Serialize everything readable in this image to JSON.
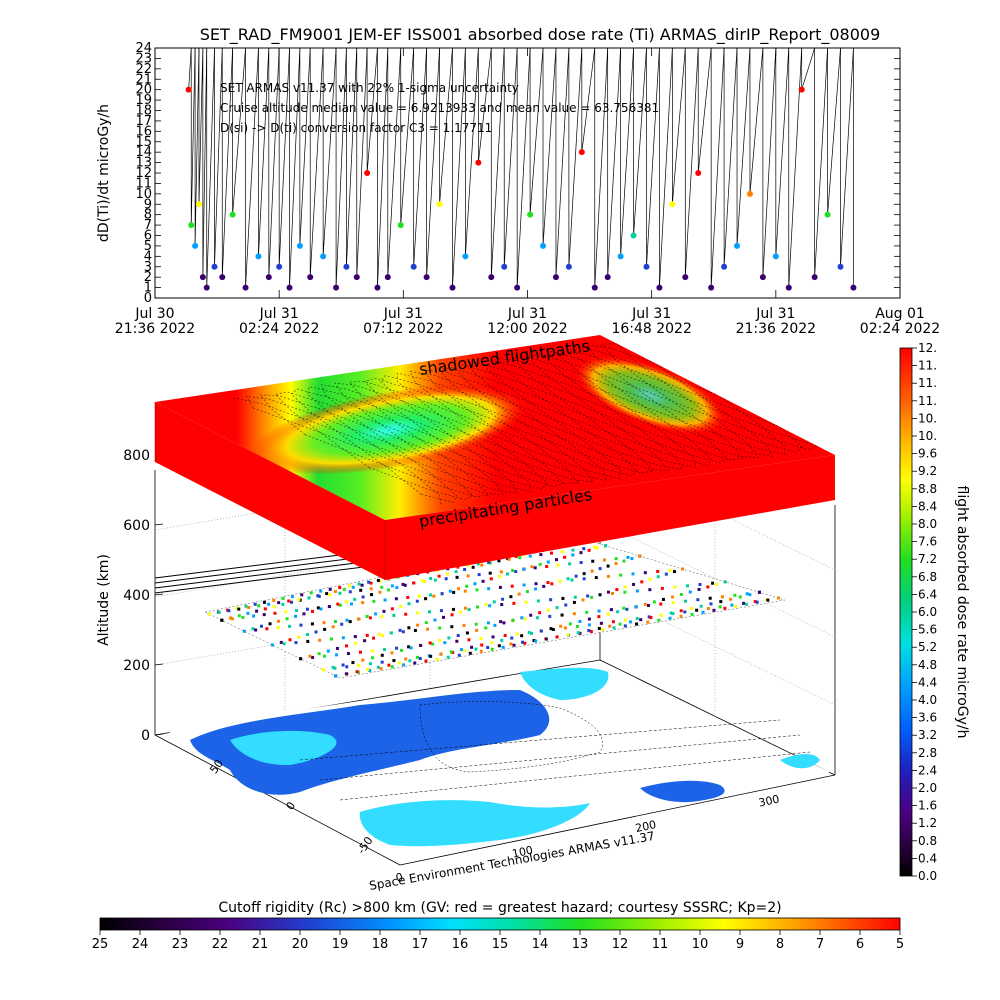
{
  "chart_data": [
    {
      "type": "scatter",
      "title": "SET_RAD_FM9001  JEM-EF ISS001 absorbed dose rate (Ti) ARMAS_dirIP_Report_08009",
      "ylabel": "dD(Ti)/dt microGy/h",
      "ylim": [
        0,
        24
      ],
      "y_ticks": [
        "0",
        "1",
        "2",
        "3",
        "4",
        "5",
        "6",
        "7",
        "8",
        "9",
        "10",
        "11",
        "12",
        "13",
        "14",
        "15",
        "16",
        "17",
        "18",
        "19",
        "20",
        "21",
        "22",
        "23",
        "24"
      ],
      "x_ticks": [
        {
          "line1": "Jul 30",
          "line2": "21:36 2022"
        },
        {
          "line1": "Jul 31",
          "line2": "02:24 2022"
        },
        {
          "line1": "Jul 31",
          "line2": "07:12 2022"
        },
        {
          "line1": "Jul 31",
          "line2": "12:00 2022"
        },
        {
          "line1": "Jul 31",
          "line2": "16:48 2022"
        },
        {
          "line1": "Jul 31",
          "line2": "21:36 2022"
        },
        {
          "line1": "Aug 01",
          "line2": "02:24 2022"
        }
      ],
      "annotations": [
        "SET ARMAS v11.37 with 22% 1-sigma uncertainty",
        "Cruise altitude median value = 6.9213933 and mean value = 63.756381",
        "D(si) -> D(ti) conversion factor C3 = 1.17711"
      ],
      "series": [
        {
          "x_hours_after_first_tick": [
            1.3,
            1.4,
            1.55,
            1.7,
            1.85,
            2.0,
            2.3,
            2.6,
            3.0,
            3.5,
            4.0,
            4.4,
            4.8,
            5.2,
            5.6,
            6.0,
            6.5,
            7.0,
            7.4,
            7.8,
            8.2,
            8.6,
            9.0,
            9.5,
            10.0,
            10.5,
            11.0,
            11.5,
            12.0,
            12.5,
            13.0,
            13.5,
            14.0,
            14.5,
            15.0,
            15.5,
            16.0,
            16.5,
            17.0,
            17.5,
            18.0,
            18.5,
            19.0,
            19.5,
            20.0,
            20.5,
            21.0,
            21.5,
            22.0,
            22.5,
            23.0,
            23.5,
            24.0,
            24.5,
            25.0,
            25.5,
            26.0,
            26.5,
            27.0
          ],
          "values": [
            20,
            7,
            5,
            9,
            2,
            1,
            3,
            2,
            8,
            1,
            4,
            2,
            3,
            1,
            5,
            2,
            4,
            1,
            3,
            2,
            12,
            1,
            2,
            7,
            3,
            2,
            9,
            1,
            4,
            13,
            2,
            3,
            1,
            8,
            5,
            2,
            3,
            14,
            1,
            2,
            4,
            6,
            3,
            1,
            9,
            2,
            12,
            1,
            3,
            5,
            10,
            2,
            4,
            1,
            20,
            2,
            8,
            3,
            1
          ]
        }
      ]
    },
    {
      "type": "heatmap",
      "ylabel": "Altitude (km)",
      "zlim": [
        0,
        800
      ],
      "z_ticks": [
        "0",
        "200",
        "400",
        "600",
        "800"
      ],
      "lat_ticks": [
        "50",
        "0",
        "-50"
      ],
      "lon_ticks": [
        "0",
        "100",
        "200",
        "300"
      ],
      "annotations": [
        "shadowed flightpaths",
        "precipitating particles"
      ],
      "footer": "Space Environment Technologies ARMAS v11.37",
      "colorbar_right": {
        "label": "flight absorbed dose rate microGy/h",
        "ticks": [
          "0.0",
          "0.4",
          "0.8",
          "1.2",
          "1.6",
          "2.0",
          "2.4",
          "2.8",
          "3.2",
          "3.6",
          "4.0",
          "4.4",
          "4.8",
          "5.2",
          "5.6",
          "6.0",
          "6.4",
          "6.8",
          "7.2",
          "7.6",
          "8.0",
          "8.4",
          "8.8",
          "9.2",
          "9.6",
          "10.",
          "10.",
          "11.",
          "11.",
          "11.",
          "12."
        ]
      },
      "colorbar_bottom": {
        "label": "Cutoff rigidity (Rc) >800 km (GV: red = greatest hazard; courtesy SSSRC; Kp=2)",
        "ticks": [
          "25",
          "24",
          "23",
          "22",
          "21",
          "20",
          "19",
          "18",
          "17",
          "16",
          "15",
          "14",
          "13",
          "12",
          "11",
          "10",
          "9",
          "8",
          "7",
          "6",
          "5"
        ]
      }
    }
  ],
  "colors": {
    "red": "#ff0000",
    "green": "#22dd33",
    "cyan": "#33ffee",
    "map_blue": "#1c63e8",
    "map_cyan": "#33ddff"
  }
}
